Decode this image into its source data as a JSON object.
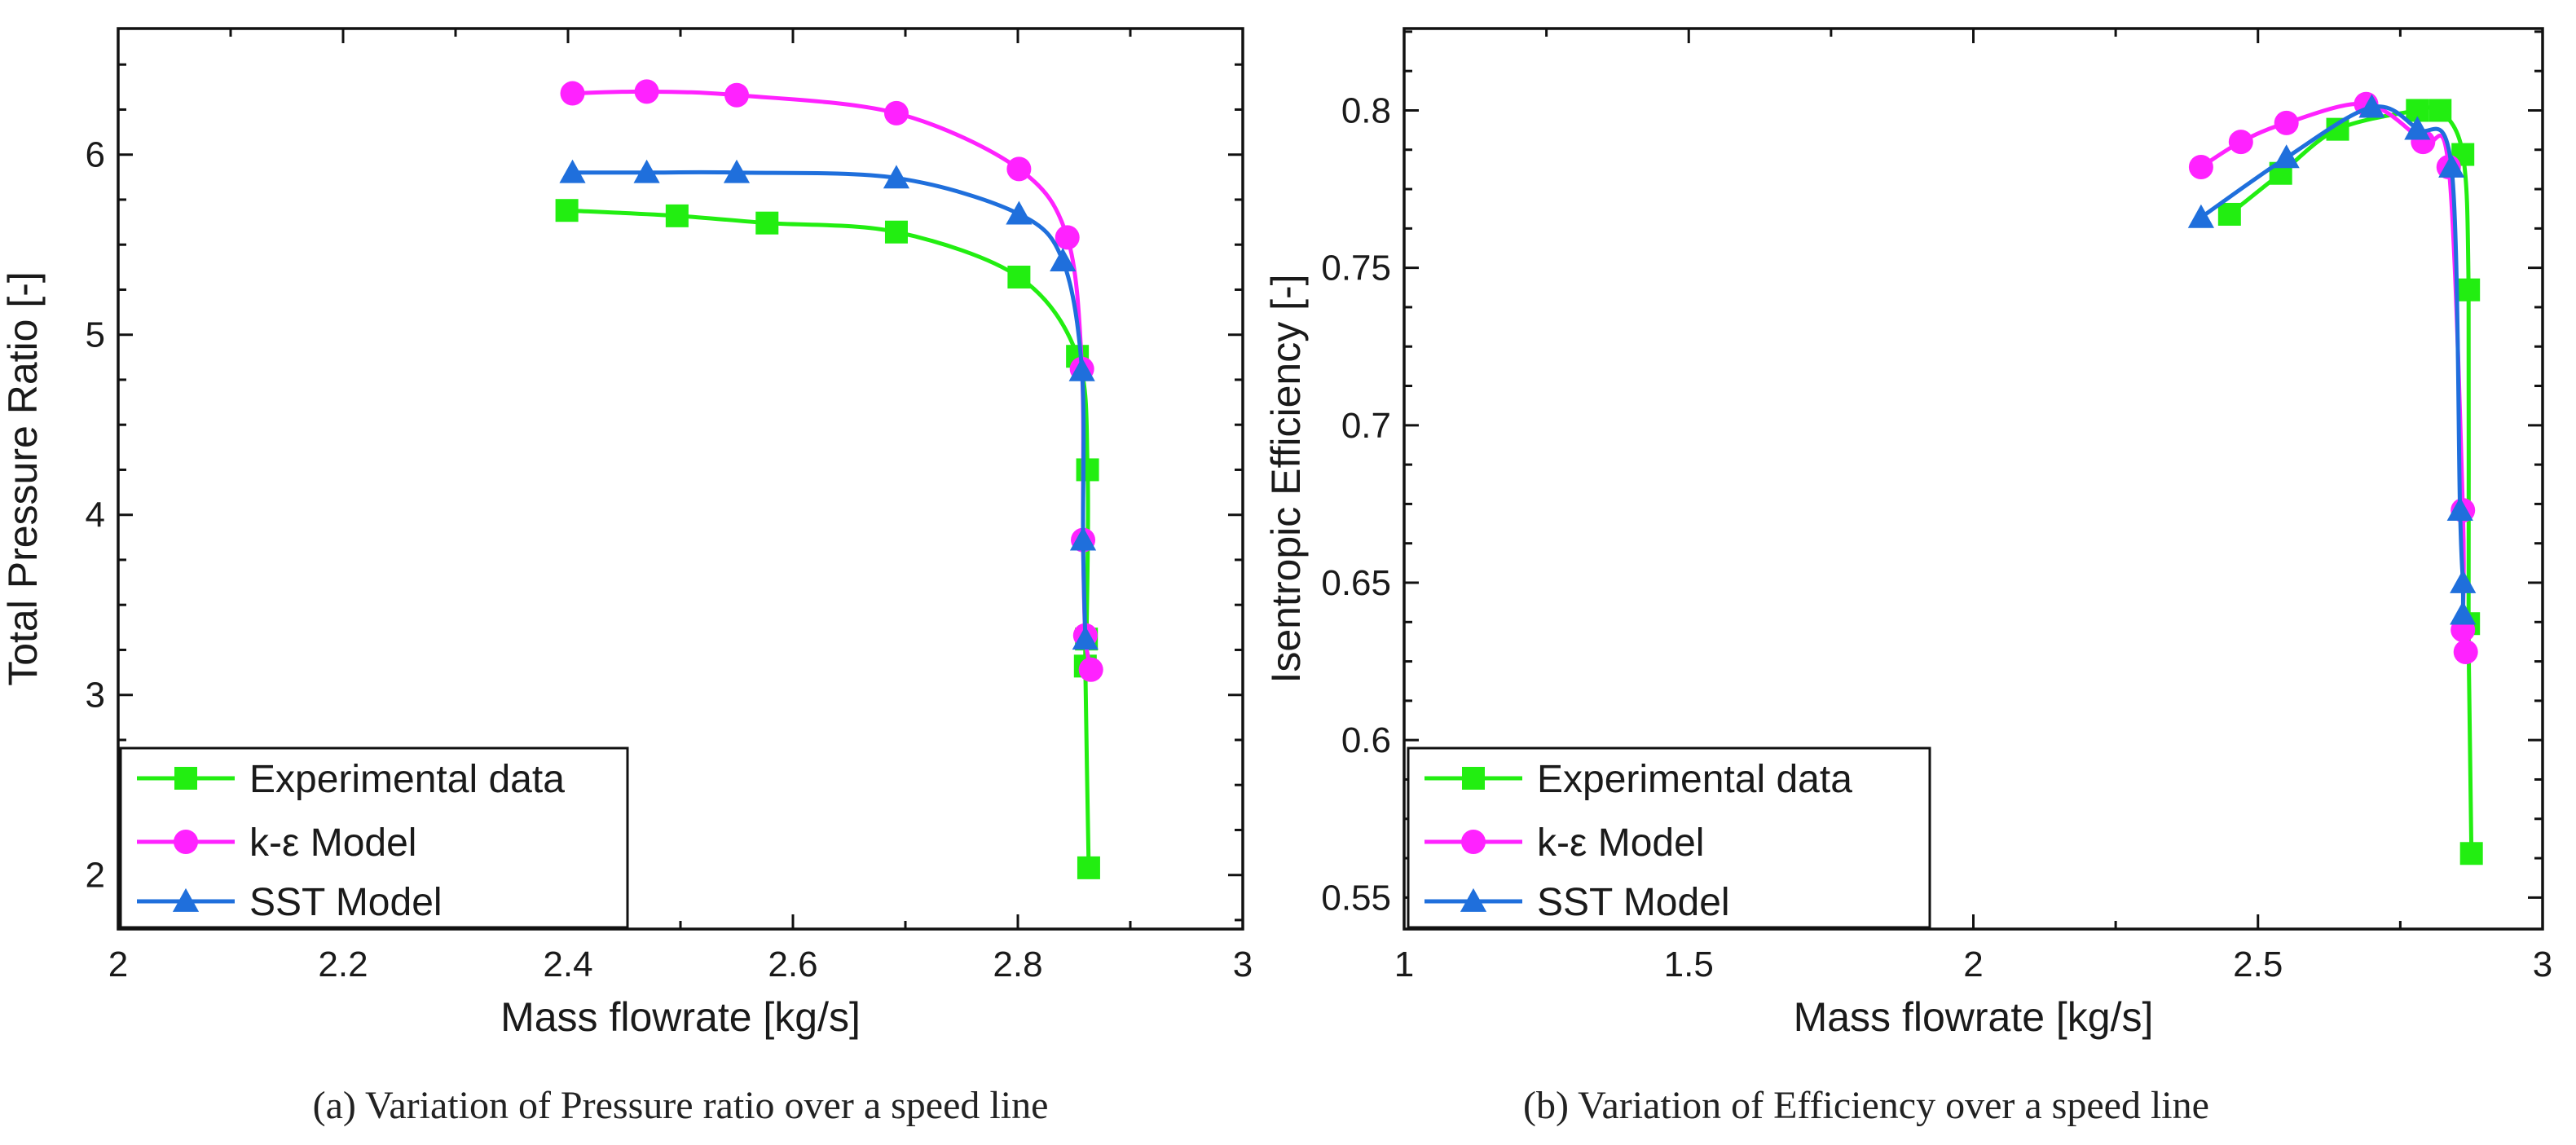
{
  "figure": {
    "captions": [
      "(a) Variation of Pressure ratio over a speed line",
      "(b) Variation of Efficiency over a speed line"
    ]
  },
  "legend_labels": [
    "Experimental data",
    "k-ε Model",
    "SST Model"
  ],
  "colors": {
    "experimental": "#22ee11",
    "k_epsilon": "#ff22ff",
    "sst": "#1f6fdc",
    "axis": "#111111"
  },
  "chart_data": [
    {
      "type": "line",
      "title": "",
      "xlabel": "Mass flowrate [kg/s]",
      "ylabel": "Total Pressure Ratio [-]",
      "xlim": [
        2.0,
        3.0
      ],
      "ylim": [
        1.7,
        6.7
      ],
      "xticks": [
        2.0,
        2.2,
        2.4,
        2.6,
        2.8,
        3.0
      ],
      "xtick_labels": [
        "2",
        "2.2",
        "2.4",
        "2.6",
        "2.8",
        "3"
      ],
      "yticks": [
        2,
        3,
        4,
        5,
        6
      ],
      "ytick_labels": [
        "2",
        "3",
        "4",
        "5",
        "6"
      ],
      "legend_position": "bottom-left",
      "series": [
        {
          "name": "Experimental data",
          "marker": "square",
          "x": [
            2.399,
            2.497,
            2.577,
            2.692,
            2.801,
            2.853,
            2.862,
            2.861,
            2.86,
            2.863
          ],
          "y": [
            5.69,
            5.66,
            5.62,
            5.57,
            5.32,
            4.88,
            4.25,
            3.31,
            3.16,
            2.04
          ]
        },
        {
          "name": "k-ε Model",
          "marker": "circle",
          "x": [
            2.404,
            2.47,
            2.55,
            2.692,
            2.801,
            2.844,
            2.857,
            2.858,
            2.86,
            2.865
          ],
          "y": [
            6.34,
            6.35,
            6.33,
            6.23,
            5.92,
            5.54,
            4.81,
            3.86,
            3.33,
            3.14
          ]
        },
        {
          "name": "SST Model",
          "marker": "triangle",
          "x": [
            2.404,
            2.47,
            2.55,
            2.692,
            2.801,
            2.84,
            2.857,
            2.858,
            2.86
          ],
          "y": [
            5.9,
            5.9,
            5.9,
            5.87,
            5.67,
            5.41,
            4.8,
            3.86,
            3.31
          ]
        }
      ]
    },
    {
      "type": "line",
      "title": "",
      "xlabel": "Mass flowrate [kg/s]",
      "ylabel": "Isentropic Efficiency [-]",
      "xlim": [
        1.0,
        3.0
      ],
      "ylim": [
        0.54,
        0.826
      ],
      "xticks": [
        1.0,
        1.5,
        2.0,
        2.5,
        3.0
      ],
      "xtick_labels": [
        "1",
        "1.5",
        "2",
        "2.5",
        "3"
      ],
      "yticks": [
        0.55,
        0.6,
        0.65,
        0.7,
        0.75,
        0.8
      ],
      "ytick_labels": [
        "0.55",
        "0.6",
        "0.65",
        "0.7",
        "0.75",
        "0.8"
      ],
      "legend_position": "bottom-left",
      "series": [
        {
          "name": "Experimental data",
          "marker": "square",
          "x": [
            2.45,
            2.54,
            2.64,
            2.78,
            2.82,
            2.86,
            2.87,
            2.87,
            2.875
          ],
          "y": [
            0.767,
            0.78,
            0.794,
            0.8,
            0.8,
            0.786,
            0.743,
            0.637,
            0.564
          ]
        },
        {
          "name": "k-ε Model",
          "marker": "circle",
          "x": [
            2.4,
            2.47,
            2.55,
            2.69,
            2.79,
            2.835,
            2.86,
            2.86,
            2.865
          ],
          "y": [
            0.782,
            0.79,
            0.796,
            0.802,
            0.79,
            0.782,
            0.673,
            0.635,
            0.628
          ]
        },
        {
          "name": "SST Model",
          "marker": "triangle",
          "x": [
            2.4,
            2.55,
            2.7,
            2.78,
            2.84,
            2.855,
            2.86,
            2.86
          ],
          "y": [
            0.766,
            0.785,
            0.801,
            0.794,
            0.782,
            0.673,
            0.65,
            0.64
          ]
        }
      ]
    }
  ]
}
